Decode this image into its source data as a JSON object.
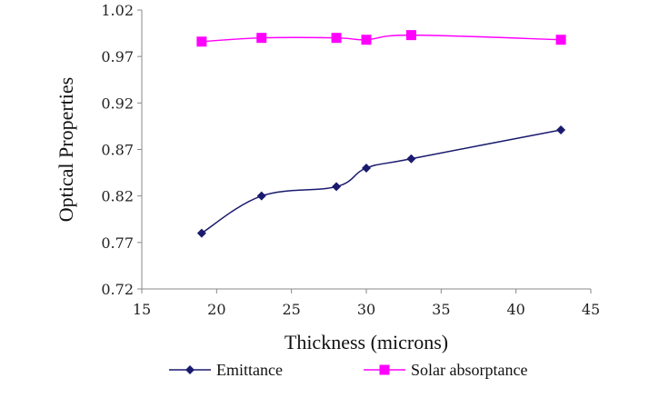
{
  "chart_data": {
    "type": "line",
    "title": "",
    "xlabel": "Thickness (microns)",
    "ylabel": "Optical Properties",
    "xlim": [
      15,
      45
    ],
    "ylim": [
      0.72,
      1.02
    ],
    "xticks": [
      15,
      20,
      25,
      30,
      35,
      40,
      45
    ],
    "yticks": [
      "0.72",
      "0.77",
      "0.82",
      "0.87",
      "0.92",
      "0.97",
      "1.02"
    ],
    "grid": false,
    "legend_position": "bottom",
    "series": [
      {
        "name": "Emittance",
        "color": "#1a1a6e",
        "marker": "diamond",
        "x": [
          19,
          23,
          28,
          30,
          33,
          43
        ],
        "y": [
          0.78,
          0.82,
          0.83,
          0.85,
          0.86,
          0.891
        ]
      },
      {
        "name": "Solar absorptance",
        "color": "#ff00ff",
        "marker": "square",
        "x": [
          19,
          23,
          28,
          30,
          33,
          43
        ],
        "y": [
          0.986,
          0.99,
          0.99,
          0.988,
          0.993,
          0.988
        ]
      }
    ]
  }
}
